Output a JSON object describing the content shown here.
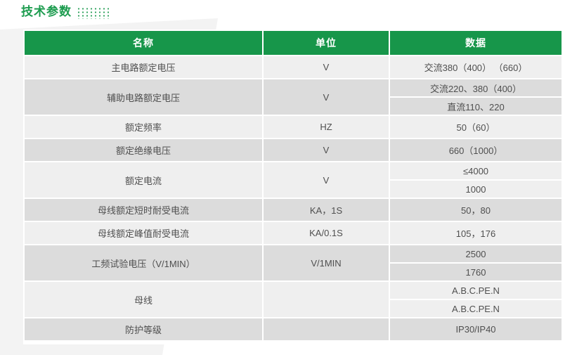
{
  "page": {
    "title": "技术参数"
  },
  "colors": {
    "title_green": "#1d9c4f",
    "header_bg": "#17964a",
    "header_text": "#ffffff",
    "row_light": "#efefef",
    "row_dark": "#dcdcdc",
    "body_text": "#4f4f4f"
  },
  "table": {
    "headers": [
      "名称",
      "单位",
      "数据"
    ],
    "rows": [
      {
        "name": "主电路额定电压",
        "unit": "V",
        "data": [
          "交流380（400） （660）"
        ]
      },
      {
        "name": "辅助电路额定电压",
        "unit": "V",
        "data": [
          "交流220、380（400）",
          "直流110、220"
        ]
      },
      {
        "name": "额定频率",
        "unit": "HZ",
        "data": [
          "50（60）"
        ]
      },
      {
        "name": "额定绝缘电压",
        "unit": "V",
        "data": [
          "660（1000）"
        ]
      },
      {
        "name": "额定电流",
        "unit": "V",
        "data": [
          "≤4000",
          "1000"
        ]
      },
      {
        "name": "母线额定短时耐受电流",
        "unit": "KA，1S",
        "data": [
          "50，80"
        ]
      },
      {
        "name": "母线额定峰值耐受电流",
        "unit": "KA/0.1S",
        "data": [
          "105，176"
        ]
      },
      {
        "name": "工频试验电压（V/1MIN）",
        "unit": "V/1MIN",
        "data": [
          "2500",
          "1760"
        ]
      },
      {
        "name": "母线",
        "unit": "",
        "data": [
          "A.B.C.PE.N",
          "A.B.C.PE.N"
        ]
      },
      {
        "name": "防护等级",
        "unit": "",
        "data": [
          "IP30/IP40"
        ]
      }
    ]
  }
}
